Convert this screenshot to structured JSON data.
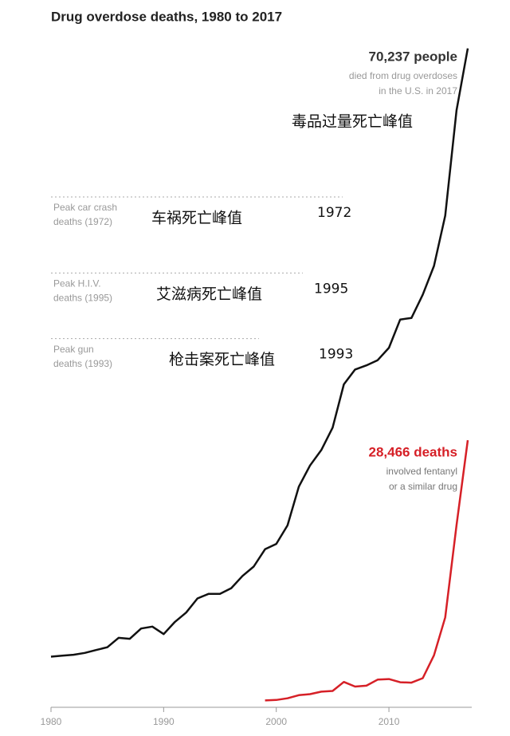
{
  "chart_data": {
    "type": "line",
    "title": "Drug overdose deaths, 1980 to 2017",
    "x": [
      1980,
      1981,
      1982,
      1983,
      1984,
      1985,
      1986,
      1987,
      1988,
      1989,
      1990,
      1991,
      1992,
      1993,
      1994,
      1995,
      1996,
      1997,
      1998,
      1999,
      2000,
      2001,
      2002,
      2003,
      2004,
      2005,
      2006,
      2007,
      2008,
      2009,
      2010,
      2011,
      2012,
      2013,
      2014,
      2015,
      2016,
      2017
    ],
    "xlim": [
      1980,
      2017
    ],
    "xticks": [
      1980,
      1990,
      2000,
      2010
    ],
    "ylim": [
      0,
      72000
    ],
    "series": [
      {
        "name": "Drug overdose deaths",
        "color": "#111111",
        "values": [
          5400,
          5500,
          5600,
          5800,
          6100,
          6400,
          7400,
          7300,
          8400,
          8600,
          7800,
          9100,
          10100,
          11600,
          12100,
          12100,
          12700,
          14000,
          15000,
          16849,
          17415,
          19394,
          23518,
          25785,
          27424,
          29813,
          34425,
          36010,
          36450,
          37004,
          38329,
          41340,
          41502,
          43982,
          47055,
          52404,
          63632,
          70237
        ]
      },
      {
        "name": "Fentanyl-related deaths",
        "color": "#d62027",
        "values": [
          null,
          null,
          null,
          null,
          null,
          null,
          null,
          null,
          null,
          null,
          null,
          null,
          null,
          null,
          null,
          null,
          null,
          null,
          null,
          730,
          782,
          957,
          1295,
          1400,
          1664,
          1742,
          2707,
          2213,
          2306,
          2946,
          3007,
          2666,
          2628,
          3105,
          5544,
          9580,
          19413,
          28466
        ]
      }
    ],
    "reference_lines": [
      {
        "label": [
          "Peak car crash",
          "deaths (1972)"
        ],
        "value": 54400,
        "note": "车祸死亡峰值",
        "year": "1972"
      },
      {
        "label": [
          "Peak H.I.V.",
          "deaths (1995)"
        ],
        "value": 46300,
        "note": "艾滋病死亡峰值",
        "year": "1995"
      },
      {
        "label": [
          "Peak gun",
          "deaths (1993)"
        ],
        "value": 39300,
        "note": "枪击案死亡峰值",
        "year": "1993"
      }
    ],
    "annotations": [
      {
        "lines": [
          "70,237 people",
          "died from drug overdoses",
          "in the U.S. in 2017"
        ],
        "note": "毒品过量死亡峰值"
      },
      {
        "lines": [
          "28,466 deaths",
          "involved fentanyl",
          "or a similar drug"
        ]
      }
    ]
  }
}
